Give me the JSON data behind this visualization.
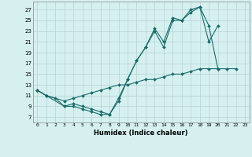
{
  "xlabel": "Humidex (Indice chaleur)",
  "bg_color": "#d6f0f0",
  "grid_color": "#b8d8d8",
  "line_color": "#1a6b6b",
  "xlim": [
    -0.5,
    23.5
  ],
  "ylim": [
    6,
    28.5
  ],
  "yticks": [
    7,
    9,
    11,
    13,
    15,
    17,
    19,
    21,
    23,
    25,
    27
  ],
  "xticks": [
    0,
    1,
    2,
    3,
    4,
    5,
    6,
    7,
    8,
    9,
    10,
    11,
    12,
    13,
    14,
    15,
    16,
    17,
    18,
    19,
    20,
    21,
    22,
    23
  ],
  "line1_x": [
    0,
    1,
    2,
    3,
    4,
    5,
    6,
    7,
    8,
    9,
    10,
    11,
    12,
    13,
    14,
    15,
    16,
    17,
    18,
    19,
    20
  ],
  "line1_y": [
    12,
    11,
    10.5,
    9,
    9,
    8.5,
    8,
    7.5,
    7.5,
    10.5,
    14,
    17.5,
    20,
    23.5,
    21,
    25.5,
    25,
    27,
    27.5,
    21,
    24
  ],
  "line2_x": [
    0,
    1,
    3,
    4,
    5,
    6,
    7,
    8,
    9,
    10,
    11,
    12,
    13,
    14,
    15,
    16,
    17,
    18,
    19,
    20,
    21,
    22
  ],
  "line2_y": [
    12,
    11,
    10,
    10.5,
    11,
    11.5,
    12,
    12.5,
    13,
    13,
    13.5,
    14,
    14,
    14.5,
    15,
    15,
    15.5,
    16,
    16,
    16,
    16,
    16
  ],
  "line3_x": [
    0,
    1,
    3,
    4,
    5,
    6,
    7,
    8,
    9,
    10,
    11,
    12,
    13,
    14,
    15,
    16,
    17,
    18,
    19,
    20
  ],
  "line3_y": [
    12,
    11,
    9,
    9.5,
    9,
    8.5,
    8,
    7.5,
    10,
    14,
    17.5,
    20,
    23,
    20,
    25,
    25,
    26.5,
    27.5,
    24,
    16
  ]
}
